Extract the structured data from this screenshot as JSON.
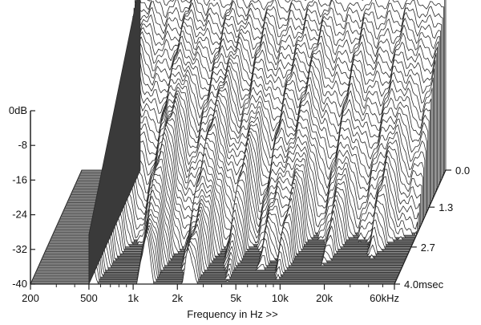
{
  "chart_data": {
    "type": "area",
    "kind": "cumulative spectral decay (waterfall)",
    "title": "",
    "xlabel": "Frequency in Hz >>",
    "ylabel": "",
    "zlabel": "",
    "x_scale": "log",
    "xlim": [
      200,
      60000
    ],
    "ylim": [
      -40,
      0
    ],
    "zlim": [
      0,
      4.0
    ],
    "x_ticks": [
      200,
      500,
      1000,
      2000,
      5000,
      10000,
      20000,
      60000
    ],
    "x_tick_labels": [
      "200",
      "500",
      "1k",
      "2k",
      "5k",
      "10k",
      "20k",
      "60kHz"
    ],
    "x_minor_ticks": [
      300,
      400,
      600,
      700,
      800,
      900,
      3000,
      4000,
      6000,
      7000,
      8000,
      9000,
      30000,
      40000,
      50000
    ],
    "y_ticks": [
      0,
      -8,
      -16,
      -24,
      -32,
      -40
    ],
    "y_tick_labels": [
      "0dB",
      "-8",
      "-16",
      "-24",
      "-32",
      "-40"
    ],
    "z_ticks": [
      0,
      1.3,
      2.7,
      4.0
    ],
    "z_tick_labels": [
      "0.0",
      "1.3",
      "2.7",
      "4.0msec"
    ],
    "n_slices": 50,
    "first_slice_response": {
      "freq_hz": [
        500,
        600,
        700,
        800,
        1000,
        1200,
        1500,
        2000,
        2500,
        3000,
        4000,
        5000,
        6000,
        7000,
        8000,
        10000,
        12000,
        15000,
        20000,
        25000,
        30000,
        40000,
        50000,
        60000
      ],
      "level_db": [
        3.5,
        3.4,
        3.3,
        3.2,
        2.6,
        2.2,
        2.8,
        1.6,
        2.1,
        1.4,
        1.9,
        1.2,
        1.8,
        1.3,
        2.0,
        1.5,
        2.4,
        1.2,
        1.8,
        2.5,
        2.1,
        2.8,
        1.4,
        3.2
      ]
    },
    "colors": {
      "floor_fill": "#7f7f7f",
      "floor_lines": "#4a4a4a",
      "slice_fill": "#ffffff",
      "slice_line": "#2a2a2a",
      "axis": "#222222",
      "wall_fill": "#3a3a3a"
    }
  }
}
